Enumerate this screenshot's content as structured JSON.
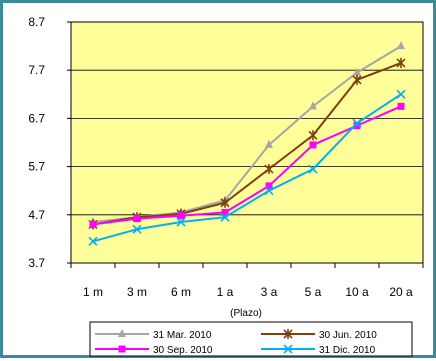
{
  "chart_data": {
    "type": "line",
    "categories": [
      "1 m",
      "3 m",
      "6 m",
      "1 a",
      "3 a",
      "5 a",
      "10 a",
      "20 a"
    ],
    "xlabel": "(Plazo)",
    "ylabel": "",
    "title": "",
    "ylim": [
      3.7,
      8.7
    ],
    "yticks": [
      "3.7",
      "4.7",
      "5.7",
      "6.7",
      "7.7",
      "8.7"
    ],
    "grid": true,
    "legend_position": "bottom",
    "plot_background": "#ffff99",
    "series": [
      {
        "name": "31 Mar. 2010",
        "color": "#a6a6a6",
        "marker": "triangle",
        "values": [
          4.55,
          4.65,
          4.75,
          5.0,
          6.15,
          6.95,
          7.65,
          8.2
        ]
      },
      {
        "name": "30 Jun. 2010",
        "color": "#7f3f0f",
        "marker": "star",
        "values": [
          4.5,
          4.65,
          4.72,
          4.95,
          5.65,
          6.35,
          7.5,
          7.85
        ]
      },
      {
        "name": "30 Sep. 2010",
        "color": "#ff00ff",
        "marker": "square",
        "values": [
          4.5,
          4.62,
          4.68,
          4.75,
          5.3,
          6.15,
          6.55,
          6.95
        ]
      },
      {
        "name": "31 Dic. 2010",
        "color": "#00b0f0",
        "marker": "x",
        "values": [
          4.15,
          4.4,
          4.55,
          4.65,
          5.2,
          5.65,
          6.6,
          7.2
        ]
      }
    ]
  }
}
